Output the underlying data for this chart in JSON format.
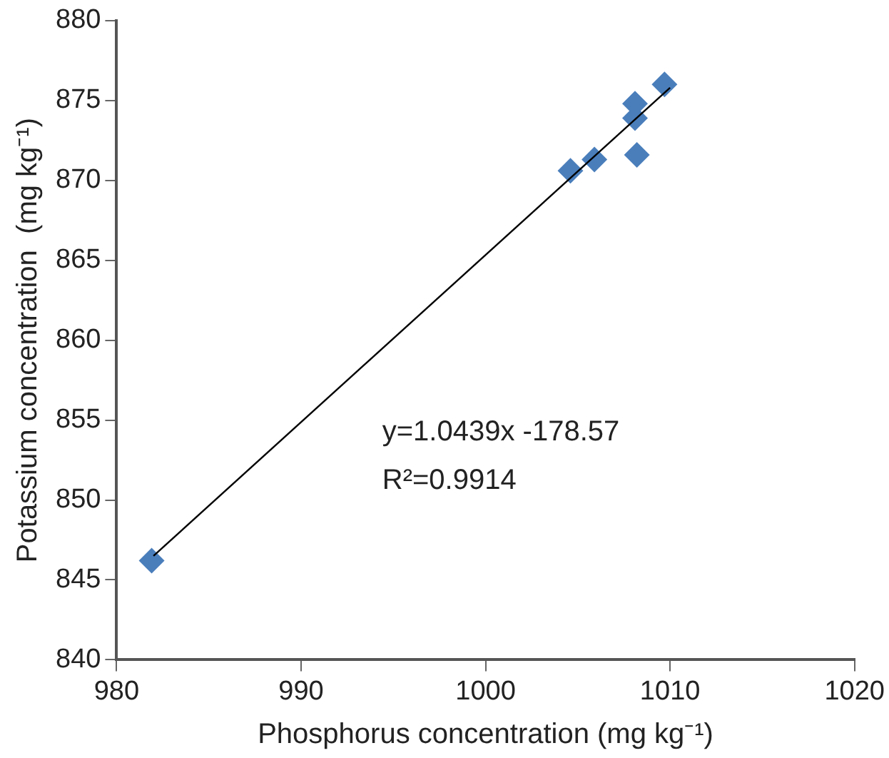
{
  "chart_data": {
    "type": "scatter",
    "xlabel": "Phosphorus concentration (mg kg⁻¹)",
    "ylabel": "Potassium concentration  (mg kg⁻¹)",
    "series": [
      {
        "type": "scatter",
        "color": "#4a7ebb",
        "marker": "diamond",
        "x": [
          981.9,
          1004.6,
          1005.9,
          1008.2,
          1008.1,
          1008.1,
          1009.7
        ],
        "values": [
          846.2,
          870.6,
          871.3,
          871.6,
          873.9,
          874.8,
          876.0
        ]
      },
      {
        "type": "line",
        "color": "#000000",
        "marker": "none",
        "x": [
          982,
          1010
        ],
        "values": [
          846.5,
          875.8
        ]
      }
    ],
    "xlim": [
      980,
      1020
    ],
    "xticks": [
      980,
      990,
      1000,
      1010,
      1020
    ],
    "ylim": [
      840,
      880
    ],
    "yticks": [
      840,
      845,
      850,
      855,
      860,
      865,
      870,
      875,
      880
    ],
    "grid": false,
    "legend": false,
    "annotations": [
      "y=1.0439x -178.57",
      "R²=0.9914"
    ]
  }
}
